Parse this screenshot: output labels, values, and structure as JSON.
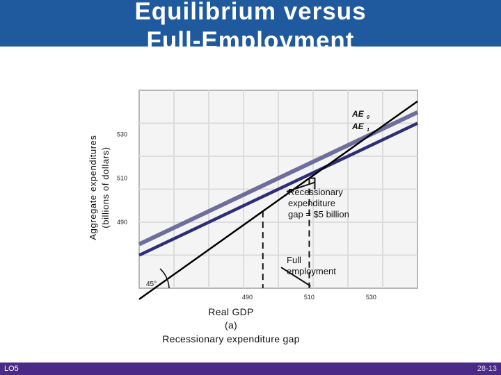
{
  "slide": {
    "title": "Equilibrium versus\nFull-Employment",
    "footer_left": "LO5",
    "footer_right": "28-13"
  },
  "chart_data": {
    "type": "line",
    "title": "",
    "xlabel": "Real GDP",
    "ylabel_line1": "Aggregate expenditures",
    "ylabel_line2": "(billions of dollars)",
    "panel_label": "(a)",
    "subtitle": "Recessionary expenditure gap",
    "x_ticks": [
      "490",
      "510",
      "530"
    ],
    "y_ticks": [
      "490",
      "510",
      "530"
    ],
    "xlim": [
      455,
      545
    ],
    "ylim": [
      460,
      550
    ],
    "series": [
      {
        "name": "AE0",
        "label_main": "AE",
        "label_sub": "0",
        "color": "#6e6e9c",
        "x": [
          455,
          545
        ],
        "y": [
          480,
          540
        ]
      },
      {
        "name": "AE1",
        "label_main": "AE",
        "label_sub": "1",
        "color": "#2e2e78",
        "x": [
          455,
          545
        ],
        "y": [
          475,
          535
        ]
      },
      {
        "name": "45-degree line",
        "color": "#000000",
        "x": [
          455,
          545
        ],
        "y": [
          455,
          545
        ]
      }
    ],
    "equilibrium_gdp": 495,
    "full_employment_gdp": 510,
    "gap_amount": 5,
    "angle_label": "45°",
    "annotations": {
      "gap_line1": "Recessionary",
      "gap_line2": "expenditure",
      "gap_line3": "gap = $5 billion",
      "fe_line1": "Full",
      "fe_line2": "employment"
    },
    "grid": true
  }
}
